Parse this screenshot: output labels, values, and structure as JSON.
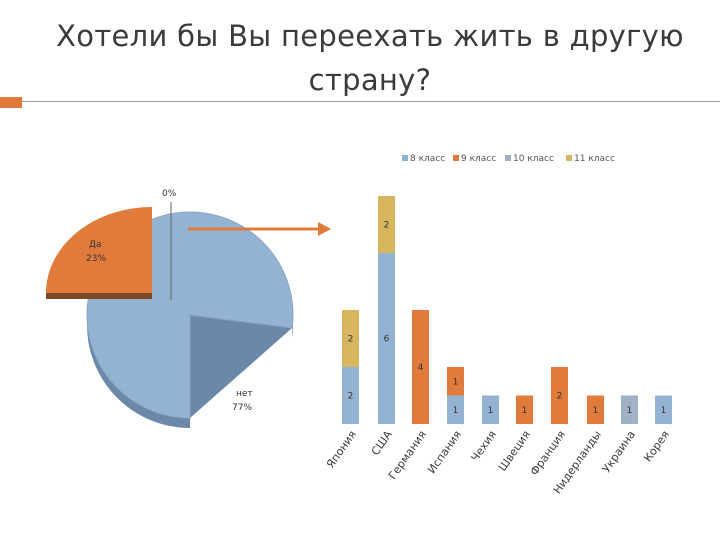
{
  "title": "Хотели бы Вы переехать жить в другую страну?",
  "colors": {
    "8 класс": "#94b3d2",
    "9 класс": "#e07b3b",
    "10 класс": "#9fb1c4",
    "11 класс": "#d7b65f",
    "pie_yes": "#e07b3b",
    "pie_no": "#94b3d2",
    "arrow": "#e07b3b",
    "accent": "#e07b3b"
  },
  "chart_data": [
    {
      "type": "pie",
      "labels": [
        "Да",
        "нет"
      ],
      "values": [
        23,
        77
      ],
      "value_labels": [
        "23%",
        "77%"
      ],
      "extra_label": "0%"
    },
    {
      "type": "bar",
      "stacked": true,
      "legend": [
        "8 класс",
        "9 класс",
        "10 класс",
        "11 класс"
      ],
      "legend_position": "top",
      "categories": [
        "Япония",
        "США",
        "Германия",
        "Испания",
        "Чехия",
        "Швеция",
        "Франция",
        "Нидерланды",
        "Украина",
        "Корея"
      ],
      "series": [
        {
          "name": "8 класс",
          "values": [
            2,
            6,
            0,
            1,
            1,
            0,
            0,
            0,
            0,
            1
          ]
        },
        {
          "name": "9 класс",
          "values": [
            0,
            0,
            4,
            1,
            0,
            1,
            2,
            1,
            0,
            0
          ]
        },
        {
          "name": "10 класс",
          "values": [
            0,
            0,
            0,
            0,
            0,
            0,
            0,
            0,
            1,
            0
          ]
        },
        {
          "name": "11 класс",
          "values": [
            2,
            2,
            0,
            0,
            0,
            0,
            0,
            0,
            0,
            0
          ]
        }
      ]
    }
  ]
}
